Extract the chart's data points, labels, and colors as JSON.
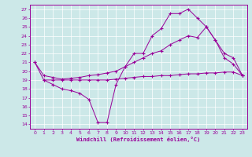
{
  "xlabel": "Windchill (Refroidissement éolien,°C)",
  "bg_color": "#cce8e8",
  "line_color": "#990099",
  "xlim": [
    -0.5,
    23.5
  ],
  "ylim": [
    13.5,
    27.5
  ],
  "yticks": [
    14,
    15,
    16,
    17,
    18,
    19,
    20,
    21,
    22,
    23,
    24,
    25,
    26,
    27
  ],
  "xticks": [
    0,
    1,
    2,
    3,
    4,
    5,
    6,
    7,
    8,
    9,
    10,
    11,
    12,
    13,
    14,
    15,
    16,
    17,
    18,
    19,
    20,
    21,
    22,
    23
  ],
  "line1_x": [
    0,
    1,
    2,
    3,
    4,
    5,
    6,
    7,
    8,
    9,
    10,
    11,
    12,
    13,
    14,
    15,
    16,
    17,
    18,
    19,
    20,
    21,
    22,
    23
  ],
  "line1_y": [
    21,
    19,
    18.5,
    18,
    17.8,
    17.5,
    16.8,
    14.2,
    14.2,
    18.5,
    20.5,
    22,
    22,
    24,
    24.8,
    26.5,
    26.5,
    27,
    26,
    25,
    23.5,
    21.5,
    20.8,
    19.5
  ],
  "line2_x": [
    0,
    1,
    2,
    3,
    4,
    5,
    6,
    7,
    8,
    9,
    10,
    11,
    12,
    13,
    14,
    15,
    16,
    17,
    18,
    19,
    20,
    21,
    22,
    23
  ],
  "line2_y": [
    21,
    19.5,
    19.3,
    19.1,
    19.2,
    19.3,
    19.5,
    19.6,
    19.8,
    20.0,
    20.5,
    21.0,
    21.5,
    22.0,
    22.3,
    23.0,
    23.5,
    24.0,
    23.8,
    25.0,
    23.5,
    22.0,
    21.5,
    19.5
  ],
  "line3_x": [
    1,
    2,
    3,
    4,
    5,
    6,
    7,
    8,
    9,
    10,
    11,
    12,
    13,
    14,
    15,
    16,
    17,
    18,
    19,
    20,
    21,
    22,
    23
  ],
  "line3_y": [
    19.0,
    19.0,
    19.0,
    19.0,
    19.0,
    19.0,
    19.0,
    19.0,
    19.1,
    19.2,
    19.3,
    19.4,
    19.4,
    19.5,
    19.5,
    19.6,
    19.7,
    19.7,
    19.8,
    19.8,
    19.9,
    19.9,
    19.5
  ]
}
